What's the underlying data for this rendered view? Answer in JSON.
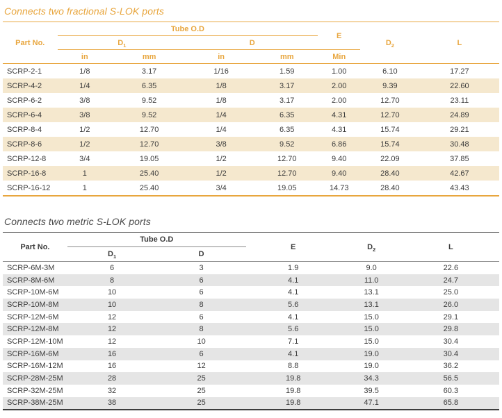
{
  "colors": {
    "accent_orange": "#E8A63E",
    "stripe_beige": "#F5E8CE",
    "stripe_gray": "#E5E5E5",
    "text_dark": "#3B3B3B",
    "line_gray": "#8A8A8A",
    "line_dark": "#3D3D3D"
  },
  "fractional": {
    "title": "Connects two fractional S-LOK ports",
    "headers": {
      "part_no": "Part No.",
      "tube_od": "Tube O.D",
      "d1_base": "D",
      "d1_sub": "1",
      "d": "D",
      "e": "E",
      "d2_base": "D",
      "d2_sub": "2",
      "l": "L",
      "units": [
        "in",
        "mm",
        "in",
        "mm",
        "Min"
      ]
    },
    "rows": [
      [
        "SCRP-2-1",
        "1/8",
        "3.17",
        "1/16",
        "1.59",
        "1.00",
        "6.10",
        "17.27"
      ],
      [
        "SCRP-4-2",
        "1/4",
        "6.35",
        "1/8",
        "3.17",
        "2.00",
        "9.39",
        "22.60"
      ],
      [
        "SCRP-6-2",
        "3/8",
        "9.52",
        "1/8",
        "3.17",
        "2.00",
        "12.70",
        "23.11"
      ],
      [
        "SCRP-6-4",
        "3/8",
        "9.52",
        "1/4",
        "6.35",
        "4.31",
        "12.70",
        "24.89"
      ],
      [
        "SCRP-8-4",
        "1/2",
        "12.70",
        "1/4",
        "6.35",
        "4.31",
        "15.74",
        "29.21"
      ],
      [
        "SCRP-8-6",
        "1/2",
        "12.70",
        "3/8",
        "9.52",
        "6.86",
        "15.74",
        "30.48"
      ],
      [
        "SCRP-12-8",
        "3/4",
        "19.05",
        "1/2",
        "12.70",
        "9.40",
        "22.09",
        "37.85"
      ],
      [
        "SCRP-16-8",
        "1",
        "25.40",
        "1/2",
        "12.70",
        "9.40",
        "28.40",
        "42.67"
      ],
      [
        "SCRP-16-12",
        "1",
        "25.40",
        "3/4",
        "19.05",
        "14.73",
        "28.40",
        "43.43"
      ]
    ]
  },
  "metric": {
    "title": "Connects two metric S-LOK ports",
    "headers": {
      "part_no": "Part No.",
      "tube_od": "Tube O.D",
      "d1_base": "D",
      "d1_sub": "1",
      "d": "D",
      "e": "E",
      "d2_base": "D",
      "d2_sub": "2",
      "l": "L"
    },
    "rows": [
      [
        "SCRP-6M-3M",
        "6",
        "3",
        "1.9",
        "9.0",
        "22.6"
      ],
      [
        "SCRP-8M-6M",
        "8",
        "6",
        "4.1",
        "11.0",
        "24.7"
      ],
      [
        "SCRP-10M-6M",
        "10",
        "6",
        "4.1",
        "13.1",
        "25.0"
      ],
      [
        "SCRP-10M-8M",
        "10",
        "8",
        "5.6",
        "13.1",
        "26.0"
      ],
      [
        "SCRP-12M-6M",
        "12",
        "6",
        "4.1",
        "15.0",
        "29.1"
      ],
      [
        "SCRP-12M-8M",
        "12",
        "8",
        "5.6",
        "15.0",
        "29.8"
      ],
      [
        "SCRP-12M-10M",
        "12",
        "10",
        "7.1",
        "15.0",
        "30.4"
      ],
      [
        "SCRP-16M-6M",
        "16",
        "6",
        "4.1",
        "19.0",
        "30.4"
      ],
      [
        "SCRP-16M-12M",
        "16",
        "12",
        "8.8",
        "19.0",
        "36.2"
      ],
      [
        "SCRP-28M-25M",
        "28",
        "25",
        "19.8",
        "34.3",
        "56.5"
      ],
      [
        "SCRP-32M-25M",
        "32",
        "25",
        "19.8",
        "39.5",
        "60.3"
      ],
      [
        "SCRP-38M-25M",
        "38",
        "25",
        "19.8",
        "47.1",
        "65.8"
      ]
    ]
  }
}
